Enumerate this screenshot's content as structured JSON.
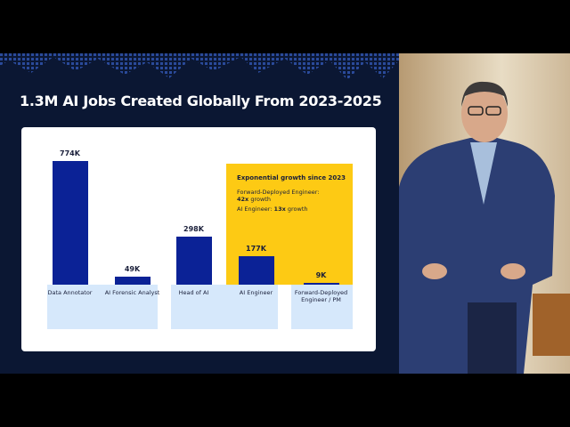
{
  "chart_data": {
    "type": "bar",
    "title": "1.3M AI Jobs Created Globally From 2023-2025",
    "categories": [
      "Data Annotator",
      "AI Forensic Analyst",
      "Head of AI",
      "AI Engineer",
      "Forward-Deployed Engineer / PM"
    ],
    "values": [
      774,
      49,
      298,
      177,
      9
    ],
    "value_labels": [
      "774K",
      "49K",
      "298K",
      "177K",
      "9K"
    ],
    "color": "#0b2296",
    "annotation": {
      "title": "Exponential growth since 2023",
      "line1_label": "Forward-Deployed Engineer:",
      "line1_value": "42x",
      "line1_suffix": "growth",
      "line2_label": "AI Engineer:",
      "line2_value": "13x",
      "line2_suffix": "growth"
    }
  }
}
